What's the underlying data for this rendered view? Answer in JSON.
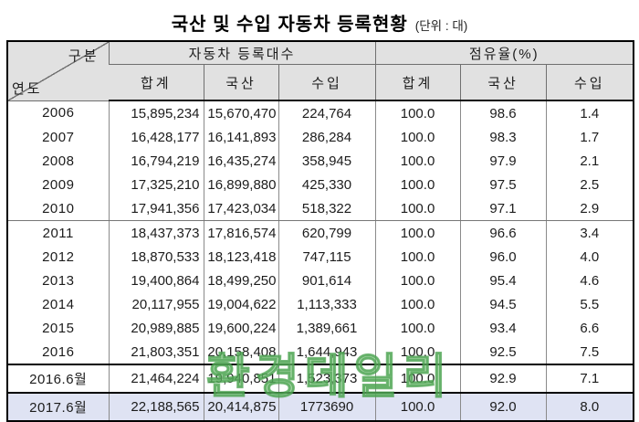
{
  "title": "국산 및 수입 자동차 등록현황",
  "unit_label": "(단위 : 대)",
  "watermark": "환경데일리",
  "colors": {
    "header_bg": "#e1e1e1",
    "highlight_row_bg": "#dfe3f3",
    "watermark_green": "#78c378",
    "border_dark": "#000000",
    "border_gray": "#8a8a8a"
  },
  "chart_data": {
    "type": "table",
    "title": "국산 및 수입 자동차 등록현황",
    "unit": "대",
    "corner_header": {
      "top_right": "구분",
      "bottom_left": "연도"
    },
    "column_groups": [
      "자동차 등록대수",
      "점유율(%)"
    ],
    "subheaders": [
      "합계",
      "국산",
      "수입",
      "합계",
      "국산",
      "수입"
    ],
    "rows": [
      {
        "year": "2006",
        "values": [
          "15,895,234",
          "15,670,470",
          "224,764",
          "100.0",
          "98.6",
          "1.4"
        ],
        "style": ""
      },
      {
        "year": "2007",
        "values": [
          "16,428,177",
          "16,141,893",
          "286,284",
          "100.0",
          "98.3",
          "1.7"
        ],
        "style": ""
      },
      {
        "year": "2008",
        "values": [
          "16,794,219",
          "16,435,274",
          "358,945",
          "100.0",
          "97.9",
          "2.1"
        ],
        "style": ""
      },
      {
        "year": "2009",
        "values": [
          "17,325,210",
          "16,899,880",
          "425,330",
          "100.0",
          "97.5",
          "2.5"
        ],
        "style": ""
      },
      {
        "year": "2010",
        "values": [
          "17,941,356",
          "17,423,034",
          "518,322",
          "100.0",
          "97.1",
          "2.9"
        ],
        "style": "group-end"
      },
      {
        "year": "2011",
        "values": [
          "18,437,373",
          "17,816,574",
          "620,799",
          "100.0",
          "96.6",
          "3.4"
        ],
        "style": ""
      },
      {
        "year": "2012",
        "values": [
          "18,870,533",
          "18,123,418",
          "747,115",
          "100.0",
          "96.0",
          "4.0"
        ],
        "style": ""
      },
      {
        "year": "2013",
        "values": [
          "19,400,864",
          "18,499,250",
          "901,614",
          "100.0",
          "95.4",
          "4.6"
        ],
        "style": ""
      },
      {
        "year": "2014",
        "values": [
          "20,117,955",
          "19,004,622",
          "1,113,333",
          "100.0",
          "94.5",
          "5.5"
        ],
        "style": ""
      },
      {
        "year": "2015",
        "values": [
          "20,989,885",
          "19,600,224",
          "1,389,661",
          "100.0",
          "93.4",
          "6.6"
        ],
        "style": ""
      },
      {
        "year": "2016",
        "values": [
          "21,803,351",
          "20,158,408",
          "1,644,943",
          "100.0",
          "92.5",
          "7.5"
        ],
        "style": "section-end"
      },
      {
        "year": "2016.6월",
        "values": [
          "21,464,224",
          "19,940,851",
          "1,523,373",
          "100.0",
          "92.9",
          "7.1"
        ],
        "style": "section-end tall"
      },
      {
        "year": "2017.6월",
        "values": [
          "22,188,565",
          "20,414,875",
          "1773690",
          "100.0",
          "92.0",
          "8.0"
        ],
        "style": "highlight tall"
      }
    ]
  }
}
